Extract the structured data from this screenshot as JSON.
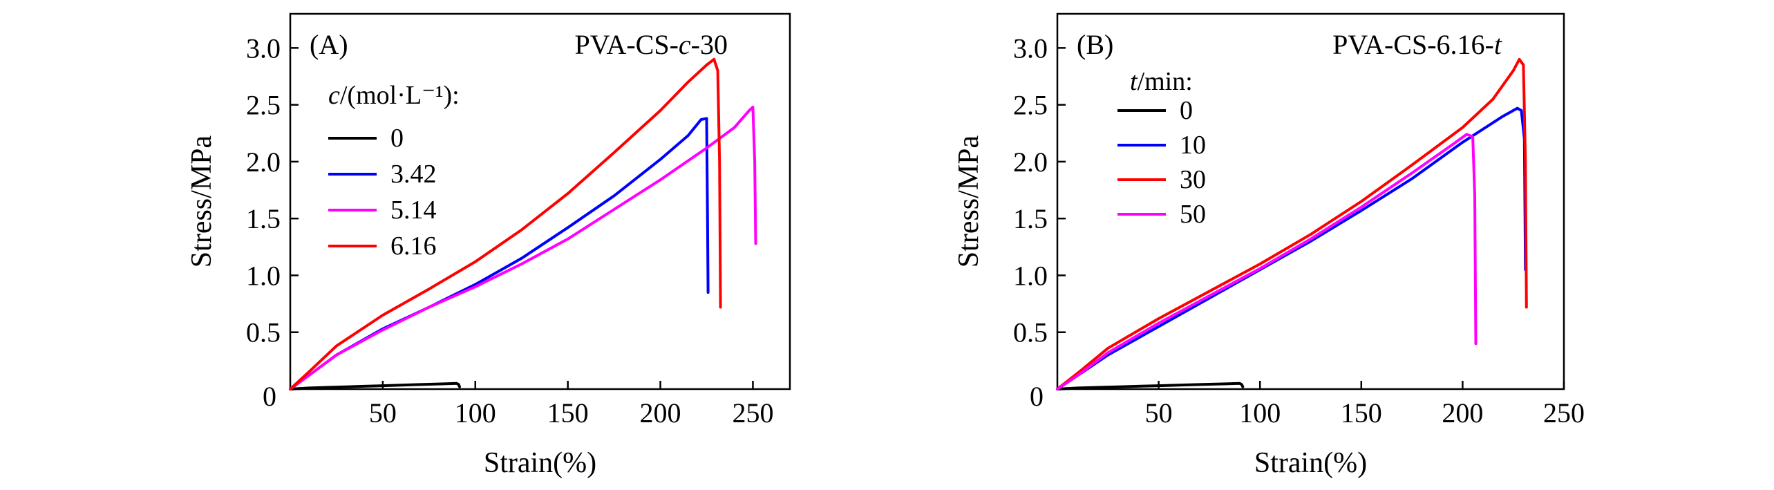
{
  "chart_data": [
    {
      "type": "line",
      "panel_label": "(A)",
      "title": "PVA-CS-c-30",
      "title_base": "PVA-CS-",
      "title_var": "c",
      "title_suffix": "-30",
      "xlabel": "Strain(%)",
      "ylabel": "Stress/MPa",
      "xlim": [
        0,
        270
      ],
      "ylim": [
        0,
        3.3
      ],
      "xticks": [
        50,
        100,
        150,
        200,
        250
      ],
      "yticks": [
        0.5,
        1.0,
        1.5,
        2.0,
        2.5,
        3.0
      ],
      "xtick_labels": [
        "50",
        "100",
        "150",
        "200",
        "250"
      ],
      "ytick_labels": [
        "0.5",
        "1.0",
        "1.5",
        "2.0",
        "2.5",
        "3.0"
      ],
      "origin_label": "0",
      "legend_title": "c/(mol·L⁻¹):",
      "legend_title_var": "c",
      "legend_title_rest": "/(mol·L⁻¹):",
      "legend_placement": "upper-left",
      "series": [
        {
          "name": "0",
          "color": "#000000",
          "x": [
            0,
            10,
            20,
            30,
            40,
            50,
            60,
            70,
            80,
            90,
            91,
            91.5
          ],
          "y": [
            0,
            0.01,
            0.015,
            0.02,
            0.025,
            0.03,
            0.035,
            0.04,
            0.045,
            0.05,
            0.04,
            0.02
          ]
        },
        {
          "name": "3.42",
          "color": "#0000ff",
          "x": [
            0,
            10,
            25,
            50,
            75,
            100,
            125,
            150,
            175,
            200,
            215,
            222,
            225,
            225.5,
            225.8
          ],
          "y": [
            0,
            0.12,
            0.3,
            0.53,
            0.72,
            0.92,
            1.15,
            1.42,
            1.7,
            2.02,
            2.23,
            2.37,
            2.38,
            1.5,
            0.85
          ]
        },
        {
          "name": "5.14",
          "color": "#ff00ff",
          "x": [
            0,
            10,
            25,
            50,
            75,
            100,
            125,
            150,
            175,
            200,
            225,
            240,
            248,
            250,
            251,
            251.5
          ],
          "y": [
            0,
            0.12,
            0.3,
            0.52,
            0.72,
            0.9,
            1.1,
            1.32,
            1.58,
            1.84,
            2.12,
            2.3,
            2.45,
            2.48,
            2.0,
            1.28
          ]
        },
        {
          "name": "6.16",
          "color": "#ff0000",
          "x": [
            0,
            10,
            25,
            50,
            75,
            100,
            125,
            150,
            175,
            200,
            215,
            225,
            229,
            231,
            232,
            232.5
          ],
          "y": [
            0,
            0.15,
            0.38,
            0.65,
            0.88,
            1.12,
            1.4,
            1.72,
            2.08,
            2.45,
            2.7,
            2.85,
            2.9,
            2.8,
            2.0,
            0.72
          ]
        }
      ]
    },
    {
      "type": "line",
      "panel_label": "(B)",
      "title": "PVA-CS-6.16-t",
      "title_base": "PVA-CS-6.16-",
      "title_var": "t",
      "title_suffix": "",
      "xlabel": "Strain(%)",
      "ylabel": "Stress/MPa",
      "xlim": [
        0,
        250
      ],
      "ylim": [
        0,
        3.3
      ],
      "xticks": [
        50,
        100,
        150,
        200,
        250
      ],
      "yticks": [
        0.5,
        1.0,
        1.5,
        2.0,
        2.5,
        3.0
      ],
      "xtick_labels": [
        "50",
        "100",
        "150",
        "200",
        "250"
      ],
      "ytick_labels": [
        "0.5",
        "1.0",
        "1.5",
        "2.0",
        "2.5",
        "3.0"
      ],
      "origin_label": "0",
      "legend_title": "t/min:",
      "legend_title_var": "t",
      "legend_title_rest": "/min:",
      "legend_placement": "upper-left",
      "series": [
        {
          "name": "0",
          "color": "#000000",
          "x": [
            0,
            10,
            20,
            30,
            40,
            50,
            60,
            70,
            80,
            90,
            91,
            91.5
          ],
          "y": [
            0,
            0.01,
            0.015,
            0.02,
            0.025,
            0.03,
            0.035,
            0.04,
            0.045,
            0.05,
            0.04,
            0.02
          ]
        },
        {
          "name": "10",
          "color": "#0000ff",
          "x": [
            0,
            10,
            25,
            50,
            75,
            100,
            125,
            150,
            175,
            200,
            220,
            227,
            229,
            230.5,
            231
          ],
          "y": [
            0,
            0.12,
            0.3,
            0.55,
            0.8,
            1.05,
            1.3,
            1.57,
            1.85,
            2.17,
            2.4,
            2.47,
            2.45,
            2.2,
            1.05
          ]
        },
        {
          "name": "30",
          "color": "#ff0000",
          "x": [
            0,
            10,
            25,
            50,
            75,
            100,
            125,
            150,
            175,
            200,
            215,
            225,
            228,
            230,
            231,
            231.5
          ],
          "y": [
            0,
            0.14,
            0.36,
            0.62,
            0.86,
            1.1,
            1.36,
            1.65,
            1.97,
            2.3,
            2.55,
            2.8,
            2.9,
            2.85,
            2.0,
            0.72
          ]
        },
        {
          "name": "50",
          "color": "#ff00ff",
          "x": [
            0,
            10,
            25,
            50,
            75,
            100,
            125,
            150,
            175,
            195,
            202,
            205,
            206,
            206.5
          ],
          "y": [
            0,
            0.12,
            0.32,
            0.58,
            0.82,
            1.06,
            1.32,
            1.6,
            1.9,
            2.15,
            2.24,
            2.22,
            1.7,
            0.4
          ]
        }
      ]
    }
  ]
}
